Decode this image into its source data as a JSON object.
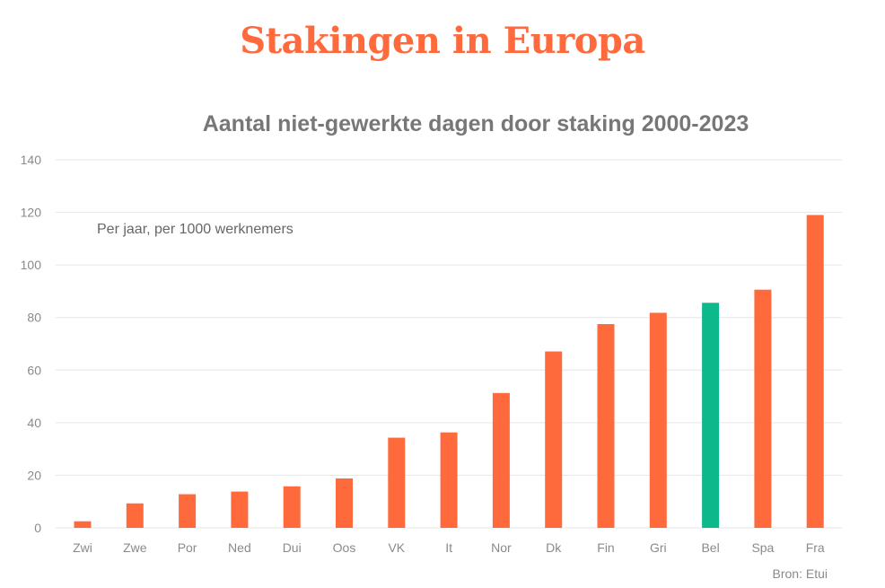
{
  "headline": "Stakingen in Europa",
  "source": "Bron: Etui",
  "colors": {
    "bar": "#ff6a3d",
    "highlight": "#0db88a",
    "grid": "#e6e6e6"
  },
  "chart_data": {
    "type": "bar",
    "title": "Aantal niet-gewerkte dagen door staking 2000-2023",
    "subtitle": "Per jaar, per 1000 werknemers",
    "xlabel": "",
    "ylabel": "",
    "ylim": [
      0,
      140
    ],
    "yticks": [
      0,
      20,
      40,
      60,
      80,
      100,
      120,
      140
    ],
    "grid": true,
    "categories": [
      "Zwi",
      "Zwe",
      "Por",
      "Ned",
      "Dui",
      "Oos",
      "VK",
      "It",
      "Nor",
      "Dk",
      "Fin",
      "Gri",
      "Bel",
      "Spa",
      "Fra"
    ],
    "values": [
      2.5,
      9.3,
      12.8,
      13.8,
      15.8,
      18.8,
      34.3,
      36.3,
      51.3,
      67.1,
      77.5,
      81.8,
      85.6,
      90.6,
      119
    ],
    "highlight": "Bel"
  }
}
